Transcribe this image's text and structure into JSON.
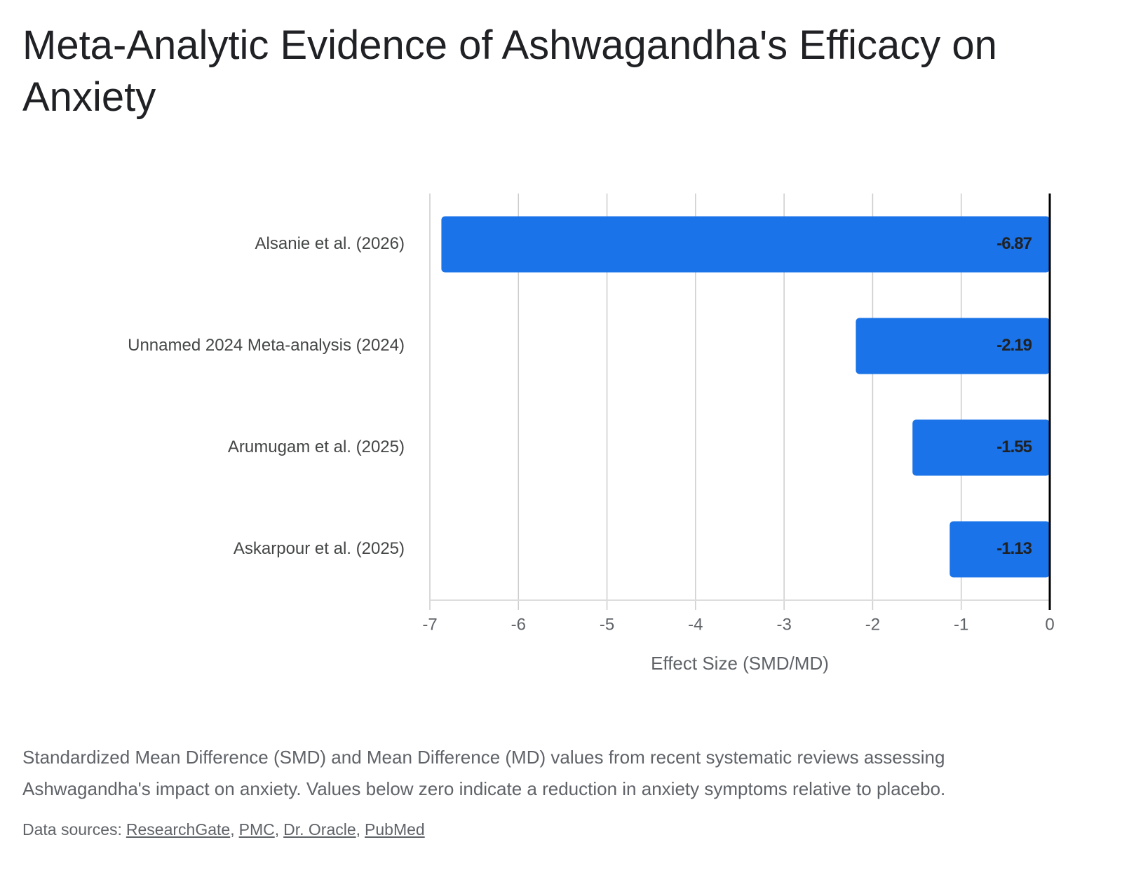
{
  "chart_data": {
    "type": "bar",
    "orientation": "horizontal",
    "title": "Meta-Analytic Evidence of Ashwagandha's Efficacy on Anxiety",
    "categories": [
      "Alsanie et al. (2026)",
      "Unnamed 2024 Meta-analysis (2024)",
      "Arumugam et al. (2025)",
      "Askarpour et al. (2025)"
    ],
    "values": [
      -6.87,
      -2.19,
      -1.55,
      -1.13
    ],
    "color": "#1a73e8",
    "xlim": [
      -7,
      0
    ],
    "xticks": [
      -7,
      -6,
      -5,
      -4,
      -3,
      -2,
      -1,
      0
    ],
    "xlabel": "Effect Size (SMD/MD)",
    "grid": true,
    "caption": "Standardized Mean Difference (SMD) and Mean Difference (MD) values from recent systematic reviews assessing Ashwagandha's impact on anxiety. Values below zero indicate a reduction in anxiety symptoms relative to placebo.",
    "sources": {
      "label": "Data sources:",
      "links": [
        "ResearchGate",
        "PMC",
        "Dr. Oracle",
        "PubMed"
      ]
    }
  }
}
